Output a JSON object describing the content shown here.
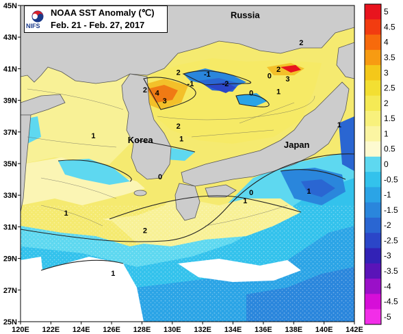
{
  "title": {
    "main": "NOAA SST Anomaly (℃)",
    "period": "Feb. 21 - Feb. 27, 2017",
    "logo_text": "NIFS"
  },
  "map": {
    "lat_labels": [
      "45N",
      "43N",
      "41N",
      "39N",
      "37N",
      "35N",
      "33N",
      "31N",
      "29N",
      "27N",
      "25N"
    ],
    "lon_labels": [
      "120E",
      "122E",
      "124E",
      "126E",
      "128E",
      "130E",
      "132E",
      "134E",
      "136E",
      "138E",
      "140E",
      "142E"
    ],
    "lat_range": [
      25,
      45
    ],
    "lon_range": [
      120,
      142
    ],
    "places": [
      {
        "name": "Russia",
        "lon": 134.8,
        "lat": 44.2
      },
      {
        "name": "Korea",
        "lon": 127.9,
        "lat": 36.3
      },
      {
        "name": "Japan",
        "lon": 138.2,
        "lat": 36.0
      }
    ],
    "contour_labels": [
      {
        "text": "2",
        "lon": 138.5,
        "lat": 42.5
      },
      {
        "text": "2",
        "lon": 130.4,
        "lat": 40.6
      },
      {
        "text": "2",
        "lon": 128.2,
        "lat": 39.5
      },
      {
        "text": "4",
        "lon": 129.0,
        "lat": 39.3
      },
      {
        "text": "3",
        "lon": 129.5,
        "lat": 38.8
      },
      {
        "text": "-1",
        "lon": 132.3,
        "lat": 40.5
      },
      {
        "text": "-2",
        "lon": 133.5,
        "lat": 39.9
      },
      {
        "text": "-1",
        "lon": 131.2,
        "lat": 39.9
      },
      {
        "text": "0",
        "lon": 136.4,
        "lat": 40.4
      },
      {
        "text": "0",
        "lon": 135.2,
        "lat": 39.3
      },
      {
        "text": "2",
        "lon": 137.0,
        "lat": 40.8
      },
      {
        "text": "3",
        "lon": 137.6,
        "lat": 40.2
      },
      {
        "text": "1",
        "lon": 137.0,
        "lat": 39.4
      },
      {
        "text": "2",
        "lon": 130.4,
        "lat": 37.2
      },
      {
        "text": "1",
        "lon": 130.6,
        "lat": 36.4
      },
      {
        "text": "1",
        "lon": 124.8,
        "lat": 36.6
      },
      {
        "text": "0",
        "lon": 129.2,
        "lat": 34.0
      },
      {
        "text": "1",
        "lon": 123.0,
        "lat": 31.7
      },
      {
        "text": "2",
        "lon": 128.2,
        "lat": 30.6
      },
      {
        "text": "1",
        "lon": 134.8,
        "lat": 32.5
      },
      {
        "text": "0",
        "lon": 135.2,
        "lat": 33.0
      },
      {
        "text": "1",
        "lon": 139.0,
        "lat": 33.1
      },
      {
        "text": "1",
        "lon": 126.1,
        "lat": 27.9
      },
      {
        "text": "1",
        "lon": 141.0,
        "lat": 37.3
      }
    ]
  },
  "colorbar": {
    "labels": [
      "5",
      "4.5",
      "4",
      "3.5",
      "3",
      "2.5",
      "2",
      "1.5",
      "1",
      "0.5",
      "0",
      "-0.5",
      "-1",
      "-1.5",
      "-2",
      "-2.5",
      "-3",
      "-3.5",
      "-4",
      "-4.5",
      "-5"
    ],
    "colors": [
      "#e8141e",
      "#f23c10",
      "#f76a0c",
      "#f79b12",
      "#f4c81a",
      "#f3df32",
      "#f5ea55",
      "#f8f17c",
      "#fbf5a2",
      "#fdfad0",
      "#5ed8f0",
      "#33c2ec",
      "#2ba4e6",
      "#2a86dc",
      "#2a66d2",
      "#2b46c8",
      "#3222b6",
      "#5a14b8",
      "#9a10c8",
      "#d60ed8",
      "#f22ee8"
    ]
  }
}
